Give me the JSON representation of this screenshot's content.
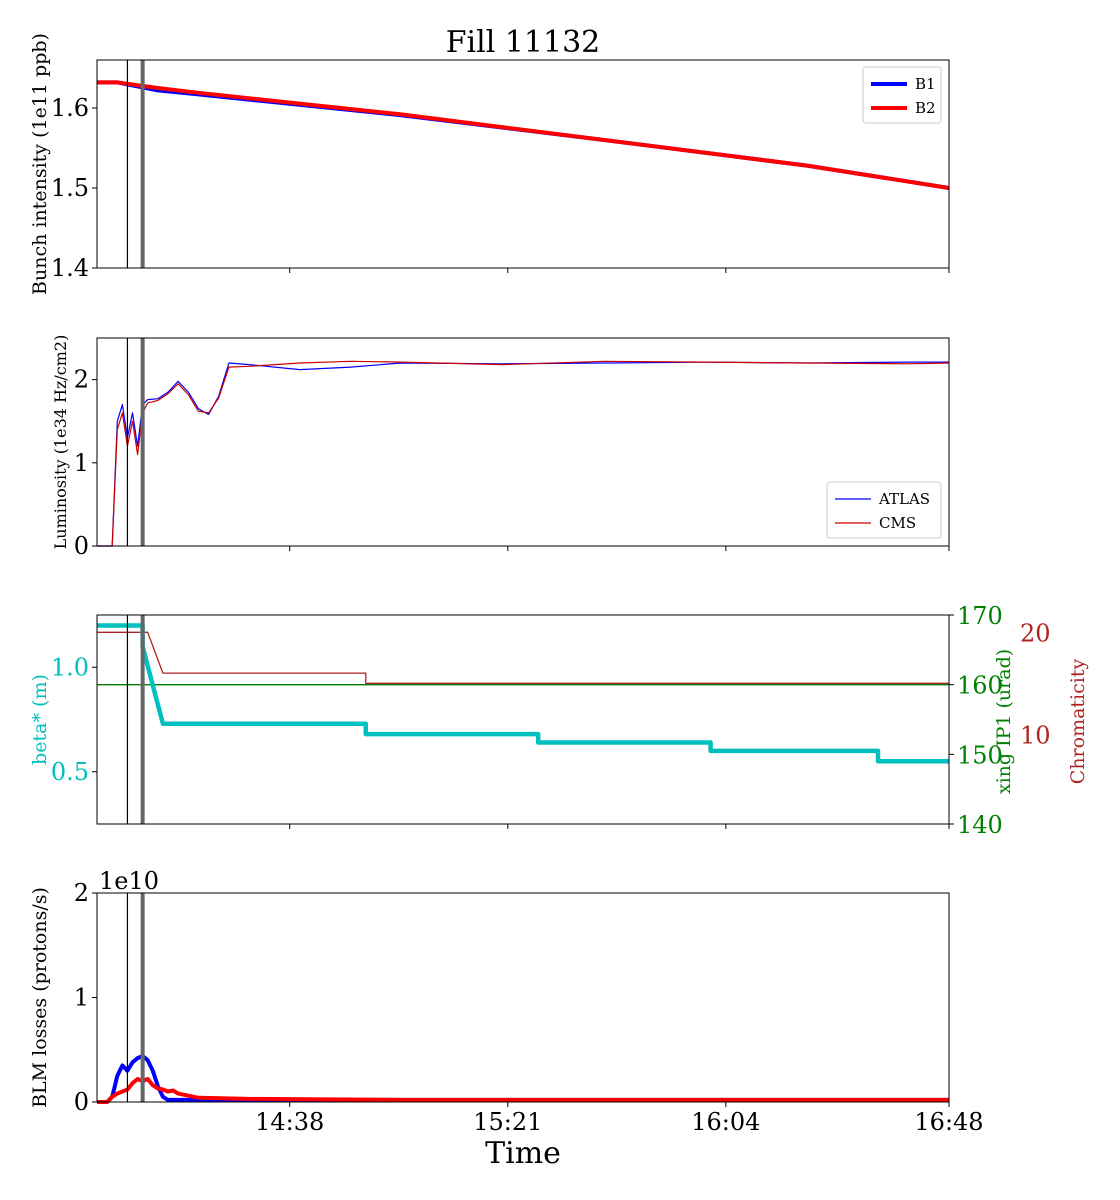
{
  "title": "Fill 11132",
  "xlabel": "Time",
  "x_ticks": [
    "14:38",
    "15:21",
    "16:04",
    "16:48"
  ],
  "colors": {
    "b1": "#0000ff",
    "b2": "#ff0000",
    "atlas": "#0000ff",
    "cms": "#cc0000",
    "beta": "#00bfbf",
    "xing": "#008000",
    "chroma": "#b22222",
    "marker": "#666666"
  },
  "chart_data": [
    {
      "type": "line",
      "ylabel": "Bunch intensity (1e11 ppb)",
      "ylim": [
        1.4,
        1.66
      ],
      "yticks": [
        1.4,
        1.5,
        1.6
      ],
      "legend": "top-right",
      "series": [
        {
          "name": "B1",
          "x": [
            "14:00",
            "14:04",
            "14:12",
            "14:20",
            "15:00",
            "15:40",
            "16:20",
            "16:48"
          ],
          "values": [
            1.632,
            1.632,
            1.622,
            1.617,
            1.591,
            1.56,
            1.528,
            1.5
          ]
        },
        {
          "name": "B2",
          "x": [
            "14:00",
            "14:04",
            "14:12",
            "14:20",
            "15:00",
            "15:40",
            "16:20",
            "16:48"
          ],
          "values": [
            1.632,
            1.632,
            1.625,
            1.619,
            1.592,
            1.56,
            1.528,
            1.5
          ]
        }
      ]
    },
    {
      "type": "line",
      "ylabel": "Luminosity (1e34 Hz/cm2)",
      "ylim": [
        0,
        2.5
      ],
      "yticks": [
        0,
        1,
        2
      ],
      "legend": "bottom-right",
      "series": [
        {
          "name": "ATLAS",
          "x": [
            "14:00",
            "14:02",
            "14:03",
            "14:04",
            "14:05",
            "14:06",
            "14:07",
            "14:08",
            "14:09",
            "14:10",
            "14:12",
            "14:14",
            "14:16",
            "14:18",
            "14:20",
            "14:22",
            "14:24",
            "14:26",
            "14:30",
            "14:40",
            "14:50",
            "15:00",
            "15:20",
            "15:40",
            "16:00",
            "16:20",
            "16:40",
            "16:48"
          ],
          "values": [
            0,
            0,
            0,
            1.5,
            1.7,
            1.3,
            1.6,
            1.2,
            1.7,
            1.76,
            1.77,
            1.85,
            1.98,
            1.85,
            1.65,
            1.58,
            1.8,
            2.2,
            2.18,
            2.12,
            2.15,
            2.2,
            2.19,
            2.2,
            2.21,
            2.2,
            2.21,
            2.21
          ]
        },
        {
          "name": "CMS",
          "x": [
            "14:00",
            "14:02",
            "14:03",
            "14:04",
            "14:05",
            "14:06",
            "14:07",
            "14:08",
            "14:09",
            "14:10",
            "14:12",
            "14:14",
            "14:16",
            "14:18",
            "14:20",
            "14:22",
            "14:24",
            "14:26",
            "14:30",
            "14:40",
            "14:50",
            "15:00",
            "15:20",
            "15:40",
            "16:00",
            "16:20",
            "16:40",
            "16:48"
          ],
          "values": [
            0,
            0,
            0,
            1.4,
            1.6,
            1.2,
            1.5,
            1.1,
            1.6,
            1.72,
            1.75,
            1.83,
            1.95,
            1.82,
            1.62,
            1.6,
            1.78,
            2.15,
            2.16,
            2.2,
            2.22,
            2.21,
            2.18,
            2.22,
            2.21,
            2.2,
            2.19,
            2.2
          ]
        }
      ]
    },
    {
      "type": "line",
      "ylabel": "beta* (m)",
      "ylim": [
        0.25,
        1.25
      ],
      "yticks": [
        0.5,
        1.0
      ],
      "right_axes": [
        {
          "label": "xing IP1 (urad)",
          "ylim": [
            140,
            170
          ],
          "yticks": [
            140,
            150,
            160,
            170
          ]
        },
        {
          "label": "Chromaticity",
          "ylim": [
            1.2,
            21.7
          ],
          "yticks": [
            10,
            20
          ]
        }
      ],
      "series": [
        {
          "name": "beta*",
          "axis": "left",
          "x": [
            "14:00",
            "14:09",
            "14:09",
            "14:13",
            "14:53",
            "14:53",
            "15:27",
            "15:27",
            "16:01",
            "16:01",
            "16:34",
            "16:34",
            "16:48"
          ],
          "values": [
            1.2,
            1.2,
            1.1,
            0.73,
            0.73,
            0.68,
            0.68,
            0.64,
            0.64,
            0.6,
            0.6,
            0.55,
            0.55
          ]
        },
        {
          "name": "xing IP1",
          "axis": "right1",
          "x": [
            "14:00",
            "16:48"
          ],
          "values": [
            160,
            160
          ]
        },
        {
          "name": "Chromaticity",
          "axis": "right2",
          "x": [
            "14:00",
            "14:10",
            "14:13",
            "14:53",
            "14:53",
            "16:48"
          ],
          "values": [
            20,
            20,
            16,
            16,
            15,
            15
          ]
        }
      ]
    },
    {
      "type": "line",
      "ylabel": "BLM losses (protons/s)",
      "yscale_label": "1e10",
      "ylim": [
        0,
        2
      ],
      "yticks": [
        0,
        1,
        2
      ],
      "series": [
        {
          "name": "B1",
          "x": [
            "14:00",
            "14:02",
            "14:03",
            "14:04",
            "14:05",
            "14:06",
            "14:07",
            "14:08",
            "14:09",
            "14:10",
            "14:11",
            "14:12",
            "14:13",
            "14:14",
            "14:16",
            "14:18",
            "14:20",
            "14:30",
            "15:00",
            "16:00",
            "16:48"
          ],
          "values": [
            0,
            0,
            0.05,
            0.25,
            0.35,
            0.3,
            0.38,
            0.42,
            0.44,
            0.4,
            0.3,
            0.15,
            0.05,
            0.02,
            0.02,
            0.02,
            0.02,
            0.02,
            0.02,
            0.02,
            0.02
          ]
        },
        {
          "name": "B2",
          "x": [
            "14:00",
            "14:02",
            "14:03",
            "14:04",
            "14:06",
            "14:07",
            "14:08",
            "14:09",
            "14:10",
            "14:11",
            "14:12",
            "14:13",
            "14:14",
            "14:15",
            "14:16",
            "14:18",
            "14:20",
            "14:30",
            "15:00",
            "16:00",
            "16:48"
          ],
          "values": [
            0,
            0,
            0.05,
            0.08,
            0.12,
            0.18,
            0.22,
            0.2,
            0.22,
            0.16,
            0.13,
            0.12,
            0.1,
            0.11,
            0.08,
            0.06,
            0.04,
            0.03,
            0.02,
            0.02,
            0.02
          ]
        }
      ]
    }
  ]
}
